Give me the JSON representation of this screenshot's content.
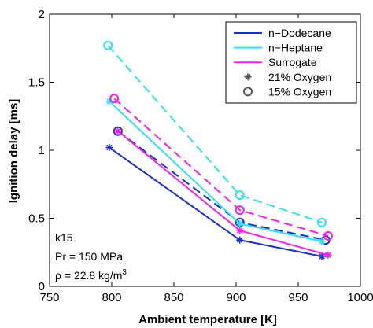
{
  "chart_data": {
    "type": "line",
    "xlabel": "Ambient temperature [K]",
    "ylabel": "Ignition delay [ms]",
    "xlim": [
      750,
      1000
    ],
    "ylim": [
      0,
      2
    ],
    "xticks": [
      750,
      800,
      850,
      900,
      950,
      1000
    ],
    "yticks": [
      0,
      0.5,
      1,
      1.5,
      2
    ],
    "grid": false,
    "legend_position": "top-right",
    "colors": {
      "n-Dodecane": "#1a2fc8",
      "n-Heptane": "#33e0ec",
      "Surrogate": "#f022e8",
      "marker": "#555555"
    },
    "legend": [
      {
        "label": "n−Dodecane",
        "kind": "line",
        "color": "#1a2fc8"
      },
      {
        "label": "n−Heptane",
        "kind": "line",
        "color": "#33e0ec"
      },
      {
        "label": "Surrogate",
        "kind": "line",
        "color": "#f022e8"
      },
      {
        "label": "21% Oxygen",
        "kind": "marker",
        "marker": "asterisk",
        "color": "#555555"
      },
      {
        "label": "15% Oxygen",
        "kind": "marker",
        "marker": "circle",
        "color": "#555555"
      }
    ],
    "series": [
      {
        "fuel": "n-Dodecane",
        "oxygen": "21%",
        "style": "solid",
        "marker": "asterisk",
        "color": "#1a2fc8",
        "x": [
          798,
          903,
          969
        ],
        "y": [
          1.02,
          0.34,
          0.22
        ]
      },
      {
        "fuel": "n-Dodecane",
        "oxygen": "15%",
        "style": "dashed",
        "marker": "circle",
        "color": "#1a2fc8",
        "x": [
          805,
          903,
          972
        ],
        "y": [
          1.14,
          0.47,
          0.34
        ]
      },
      {
        "fuel": "n-Heptane",
        "oxygen": "21%",
        "style": "solid",
        "marker": "asterisk",
        "color": "#33e0ec",
        "x": [
          798,
          903,
          969
        ],
        "y": [
          1.36,
          0.46,
          0.33
        ]
      },
      {
        "fuel": "n-Heptane",
        "oxygen": "15%",
        "style": "dashed",
        "marker": "circle",
        "color": "#33e0ec",
        "x": [
          797,
          903,
          969
        ],
        "y": [
          1.77,
          0.67,
          0.47
        ]
      },
      {
        "fuel": "Surrogate",
        "oxygen": "21%",
        "style": "solid",
        "marker": "asterisk",
        "color": "#f022e8",
        "x": [
          805,
          903,
          974
        ],
        "y": [
          1.14,
          0.41,
          0.23
        ]
      },
      {
        "fuel": "Surrogate",
        "oxygen": "15%",
        "style": "dashed",
        "marker": "circle",
        "color": "#f022e8",
        "x": [
          802,
          903,
          974
        ],
        "y": [
          1.38,
          0.56,
          0.37
        ]
      }
    ],
    "annotations": [
      "k15",
      "Pr = 150 MPa"
    ],
    "annotation_rho": {
      "prefix": "ρ = 22.8 kg/m",
      "superscript": "3"
    }
  }
}
